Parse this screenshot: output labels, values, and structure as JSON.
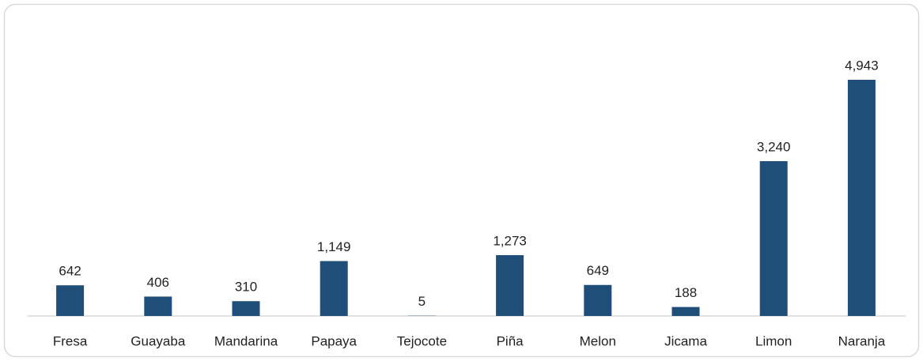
{
  "chart_data": {
    "type": "bar",
    "categories": [
      "Fresa",
      "Guayaba",
      "Mandarina",
      "Papaya",
      "Tejocote",
      "Piña",
      "Melon",
      "Jicama",
      "Limon",
      "Naranja"
    ],
    "values": [
      642,
      406,
      310,
      1149,
      5,
      1273,
      649,
      188,
      3240,
      4943
    ],
    "value_labels": [
      "642",
      "406",
      "310",
      "1,149",
      "5",
      "1,273",
      "649",
      "188",
      "3,240",
      "4,943"
    ],
    "color": "#1f4e79"
  }
}
